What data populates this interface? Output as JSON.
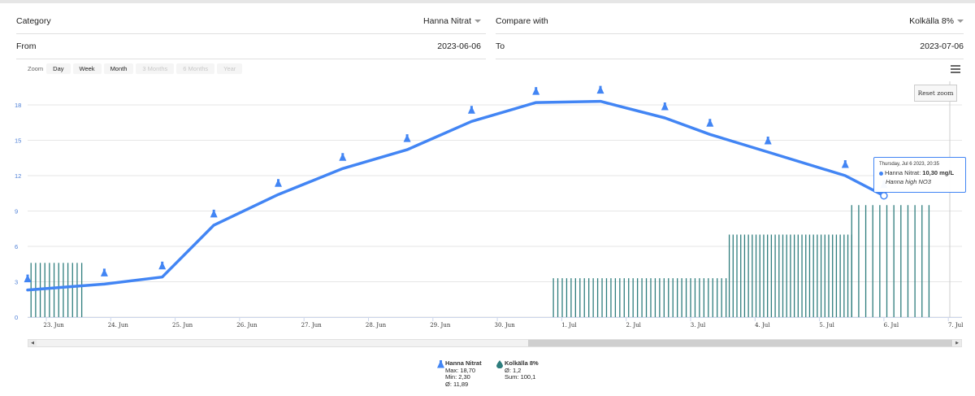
{
  "filters": {
    "category_label": "Category",
    "category_value": "Hanna Nitrat",
    "compare_label": "Compare with",
    "compare_value": "Kolkälla 8%",
    "from_label": "From",
    "from_value": "2023-06-06",
    "to_label": "To",
    "to_value": "2023-07-06"
  },
  "zoom": {
    "label": "Zoom",
    "buttons": [
      {
        "label": "Day",
        "enabled": true
      },
      {
        "label": "Week",
        "enabled": true
      },
      {
        "label": "Month",
        "enabled": true
      },
      {
        "label": "3 Months",
        "enabled": false
      },
      {
        "label": "6 Months",
        "enabled": false
      },
      {
        "label": "Year",
        "enabled": false
      }
    ]
  },
  "reset_zoom_label": "Reset zoom",
  "tooltip": {
    "date": "Thursday, Jul 6 2023, 20:35",
    "series": "Hanna Nitrat",
    "value": "10,30 mg/L",
    "note": "Hanna high NO3"
  },
  "legend": [
    {
      "name": "Hanna Nitrat",
      "icon": "flask-icon",
      "color": "#4285f4",
      "stats": [
        "Max: 18,70",
        "Min: 2,30",
        "Ø: 11,89"
      ]
    },
    {
      "name": "Kolkälla 8%",
      "icon": "drop-icon",
      "color": "#2e7d7d",
      "stats": [
        "Ø: 1,2",
        "Sum: 100,1"
      ]
    }
  ],
  "chart_data": {
    "type": "line",
    "ylim": [
      0,
      20
    ],
    "yticks": [
      0,
      3,
      6,
      9,
      12,
      15,
      18
    ],
    "xlim": [
      22.57,
      34.0
    ],
    "x_ticks": [
      {
        "label": "23. Jun",
        "day": 23
      },
      {
        "label": "24. Jun",
        "day": 24
      },
      {
        "label": "25. Jun",
        "day": 25
      },
      {
        "label": "26. Jun",
        "day": 26
      },
      {
        "label": "27. Jun",
        "day": 27
      },
      {
        "label": "28. Jun",
        "day": 28
      },
      {
        "label": "29. Jun",
        "day": 29
      },
      {
        "label": "30. Jun",
        "day": 30
      },
      {
        "label": "1. Jul",
        "day": 31
      },
      {
        "label": "2. Jul",
        "day": 32
      },
      {
        "label": "3. Jul",
        "day": 33
      },
      {
        "label": "4. Jul",
        "day": 34
      },
      {
        "label": "5. Jul",
        "day": 35
      },
      {
        "label": "6. Jul",
        "day": 36
      },
      {
        "label": "7. Jul",
        "day": 37
      }
    ],
    "line_series": {
      "name": "Hanna Nitrat",
      "color": "#4285f4",
      "points": [
        {
          "day": 22.6,
          "value": 2.3
        },
        {
          "day": 23.9,
          "value": 2.8
        },
        {
          "day": 24.8,
          "value": 3.4
        },
        {
          "day": 25.6,
          "value": 7.8
        },
        {
          "day": 26.6,
          "value": 10.4
        },
        {
          "day": 27.6,
          "value": 12.6
        },
        {
          "day": 28.6,
          "value": 14.2
        },
        {
          "day": 29.6,
          "value": 16.6
        },
        {
          "day": 30.6,
          "value": 18.2
        },
        {
          "day": 31.6,
          "value": 18.3
        },
        {
          "day": 32.6,
          "value": 16.9
        },
        {
          "day": 33.3,
          "value": 15.5
        },
        {
          "day": 34.2,
          "value": 14.0
        },
        {
          "day": 35.4,
          "value": 12.0
        },
        {
          "day": 36.0,
          "value": 10.3
        }
      ]
    },
    "bar_series": {
      "name": "Kolkälla 8%",
      "color": "#2e7d7d",
      "groups": [
        {
          "start_day": 22.62,
          "end_day": 23.55,
          "count": 14,
          "value": 4.6
        },
        {
          "start_day": 30.87,
          "end_day": 33.55,
          "count": 40,
          "value": 3.3
        },
        {
          "start_day": 33.6,
          "end_day": 35.5,
          "count": 33,
          "value": 7.0
        },
        {
          "start_day": 35.5,
          "end_day": 36.7,
          "count": 12,
          "value": 9.5
        }
      ]
    }
  }
}
